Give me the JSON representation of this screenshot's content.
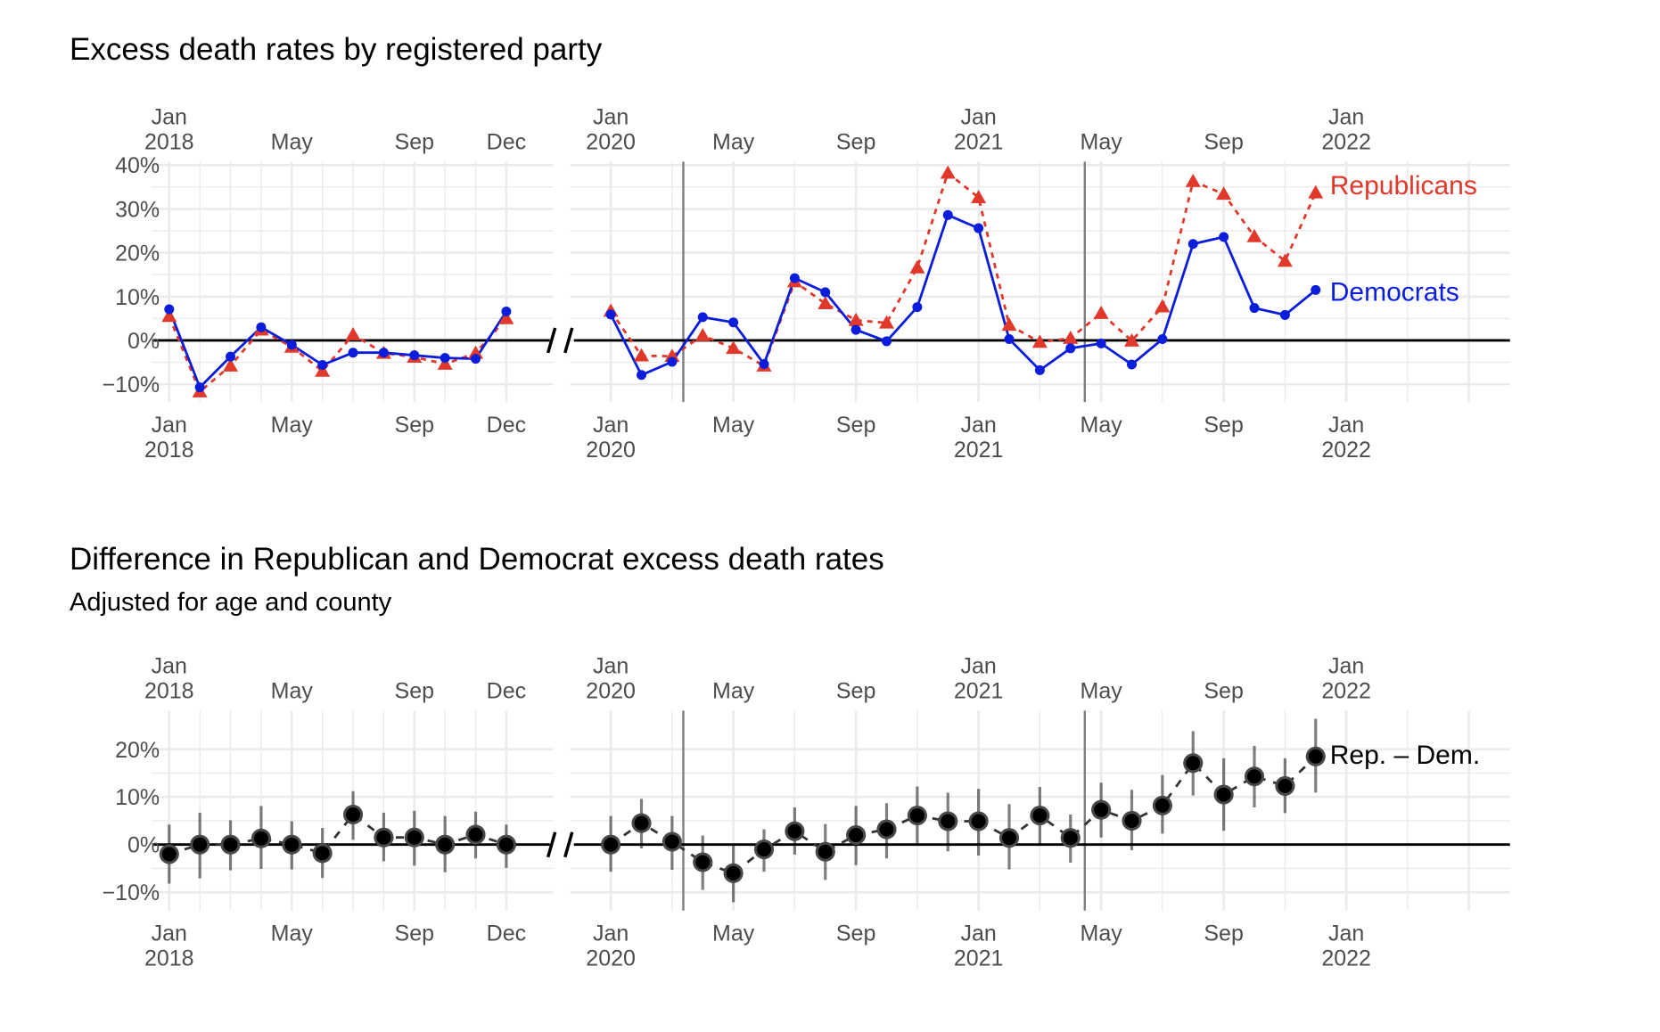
{
  "colors": {
    "republican": "#e0382b",
    "democrat": "#0a1ddb",
    "difference": "#000000",
    "grid": "#ebebeb",
    "reference_line": "#7f7f7f",
    "tick_text": "#4d4d4d"
  },
  "chart_data": [
    {
      "type": "line",
      "title": "Excess death rates by registered party",
      "xlabel": "",
      "ylabel": "",
      "y_ticks": [
        "40%",
        "30%",
        "20%",
        "10%",
        "0%",
        "−10%"
      ],
      "y_tick_values": [
        40,
        30,
        20,
        10,
        0,
        -10
      ],
      "ylim": [
        -14,
        41
      ],
      "x_axis_break": true,
      "panels": [
        {
          "name": "2018",
          "x": [
            "2018-01",
            "2018-02",
            "2018-03",
            "2018-04",
            "2018-05",
            "2018-06",
            "2018-07",
            "2018-08",
            "2018-09",
            "2018-10",
            "2018-11",
            "2018-12"
          ],
          "x_tick_labels": [
            {
              "month": "2018-01",
              "line1": "Jan",
              "line2": "2018"
            },
            {
              "month": "2018-05",
              "line1": "May",
              "line2": ""
            },
            {
              "month": "2018-09",
              "line1": "Sep",
              "line2": ""
            },
            {
              "month": "2018-12",
              "line1": "Dec",
              "line2": ""
            }
          ]
        },
        {
          "name": "2020-2021",
          "x": [
            "2020-01",
            "2020-02",
            "2020-03",
            "2020-04",
            "2020-05",
            "2020-06",
            "2020-07",
            "2020-08",
            "2020-09",
            "2020-10",
            "2020-11",
            "2020-12",
            "2021-01",
            "2021-02",
            "2021-03",
            "2021-04",
            "2021-05",
            "2021-06",
            "2021-07",
            "2021-08",
            "2021-09",
            "2021-10",
            "2021-11",
            "2021-12"
          ],
          "x_tick_labels": [
            {
              "month": "2020-01",
              "line1": "Jan",
              "line2": "2020"
            },
            {
              "month": "2020-05",
              "line1": "May",
              "line2": ""
            },
            {
              "month": "2020-09",
              "line1": "Sep",
              "line2": ""
            },
            {
              "month": "2021-01",
              "line1": "Jan",
              "line2": "2021"
            },
            {
              "month": "2021-05",
              "line1": "May",
              "line2": ""
            },
            {
              "month": "2021-09",
              "line1": "Sep",
              "line2": ""
            },
            {
              "month": "2022-01",
              "line1": "Jan",
              "line2": "2022"
            }
          ],
          "reference_lines": [
            "2020-03-12",
            "2021-04-15"
          ]
        }
      ],
      "series": [
        {
          "name": "Republicans",
          "label": "Republicans",
          "marker": "triangle",
          "line_style": "dotted",
          "values_2018": [
            5.5,
            -11.7,
            -5.8,
            2.4,
            -1.5,
            -7.0,
            1.3,
            -2.9,
            -3.8,
            -5.4,
            -2.9,
            5.0
          ],
          "values_2020_2021": [
            6.7,
            -3.5,
            -3.6,
            1.1,
            -1.8,
            -5.8,
            13.4,
            8.4,
            4.6,
            4.0,
            16.6,
            38.2,
            32.6,
            3.5,
            -0.4,
            0.5,
            6.2,
            -0.1,
            7.7,
            36.3,
            33.4,
            23.7,
            18.1,
            33.7
          ]
        },
        {
          "name": "Democrats",
          "label": "Democrats",
          "marker": "circle",
          "line_style": "solid",
          "values_2018": [
            7.1,
            -10.7,
            -3.7,
            3.0,
            -1.0,
            -5.6,
            -2.8,
            -2.8,
            -3.4,
            -4.0,
            -4.2,
            6.6
          ],
          "values_2020_2021": [
            5.9,
            -7.9,
            -4.9,
            5.3,
            4.1,
            -5.4,
            14.2,
            11.0,
            2.4,
            -0.2,
            7.6,
            28.6,
            25.6,
            0.3,
            -6.8,
            -1.8,
            -0.7,
            -5.5,
            0.3,
            22.0,
            23.6,
            7.4,
            5.8,
            11.5
          ]
        }
      ]
    },
    {
      "type": "scatter",
      "title": "Difference in Republican and Democrat excess death rates",
      "subtitle": "Adjusted for age and county",
      "xlabel": "",
      "ylabel": "",
      "y_ticks": [
        "20%",
        "10%",
        "0%",
        "−10%"
      ],
      "y_tick_values": [
        20,
        10,
        0,
        -10
      ],
      "ylim": [
        -14,
        27
      ],
      "x_axis_break": true,
      "series": [
        {
          "name": "Rep. – Dem.",
          "label": "Rep. – Dem.",
          "marker": "circle",
          "line_style": "dashed",
          "error_bars": true,
          "values_2018": [
            -2.0,
            0.0,
            0.0,
            1.3,
            0.0,
            -1.8,
            6.3,
            1.5,
            1.5,
            0.0,
            2.1,
            0.0
          ],
          "lower_2018": [
            -8.2,
            -7.1,
            -5.4,
            -5.1,
            -5.2,
            -7.0,
            1.0,
            -3.5,
            -4.4,
            -5.8,
            -2.9,
            -4.9
          ],
          "upper_2018": [
            4.2,
            6.7,
            5.1,
            8.1,
            4.9,
            3.5,
            11.2,
            6.7,
            7.1,
            6.0,
            6.9,
            4.2
          ],
          "values_2020_2021": [
            0.0,
            4.5,
            0.6,
            -3.7,
            -6.0,
            -1.0,
            2.8,
            -1.5,
            2.0,
            3.2,
            6.1,
            4.9,
            4.9,
            1.4,
            6.1,
            1.4,
            7.3,
            5.0,
            8.2,
            17.1,
            10.5,
            14.3,
            12.3,
            18.5
          ],
          "lower_2020_2021": [
            -5.7,
            -0.8,
            -5.3,
            -9.5,
            -12.1,
            -5.7,
            -2.1,
            -7.4,
            -4.3,
            -2.9,
            0.0,
            -1.4,
            -2.3,
            -5.2,
            0.1,
            -3.8,
            1.5,
            -1.2,
            2.3,
            10.3,
            2.9,
            7.8,
            6.6,
            10.9
          ],
          "upper_2020_2021": [
            6.0,
            9.6,
            6.0,
            1.9,
            0.1,
            3.2,
            7.8,
            4.3,
            8.1,
            8.7,
            12.2,
            10.9,
            11.7,
            8.5,
            12.1,
            6.3,
            13.0,
            11.5,
            14.6,
            23.8,
            18.1,
            20.7,
            18.1,
            26.4
          ]
        }
      ]
    }
  ]
}
